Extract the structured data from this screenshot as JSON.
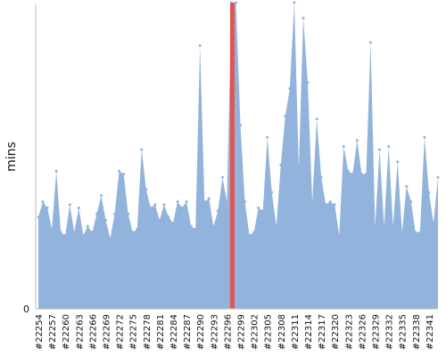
{
  "chart_data": {
    "type": "area",
    "ylabel": "mins",
    "xlabel": "",
    "title": "",
    "y_ticks": [
      "0"
    ],
    "ylim": [
      0,
      100
    ],
    "fill_color": "#92b4dc",
    "highlight_color": "#e15555",
    "highlight_x": "#22297",
    "x_tick_labels": [
      "#22254",
      "#22257",
      "#22260",
      "#22263",
      "#22266",
      "#22269",
      "#22272",
      "#22275",
      "#22278",
      "#22281",
      "#22284",
      "#22287",
      "#22290",
      "#22293",
      "#22296",
      "#22299",
      "#22302",
      "#22305",
      "#22308",
      "#22311",
      "#22314",
      "#22317",
      "#22320",
      "#22323",
      "#22326",
      "#22329",
      "#22332",
      "#22335",
      "#22338",
      "#22341"
    ],
    "x": [
      "#22254",
      "#22255",
      "#22256",
      "#22257",
      "#22258",
      "#22259",
      "#22260",
      "#22261",
      "#22262",
      "#22263",
      "#22264",
      "#22265",
      "#22266",
      "#22267",
      "#22268",
      "#22269",
      "#22270",
      "#22271",
      "#22272",
      "#22273",
      "#22274",
      "#22275",
      "#22276",
      "#22277",
      "#22278",
      "#22279",
      "#22280",
      "#22281",
      "#22282",
      "#22283",
      "#22284",
      "#22285",
      "#22286",
      "#22287",
      "#22288",
      "#22289",
      "#22290",
      "#22291",
      "#22292",
      "#22293",
      "#22294",
      "#22295",
      "#22296",
      "#22297",
      "#22298",
      "#22299",
      "#22300",
      "#22301",
      "#22302",
      "#22303",
      "#22304",
      "#22305",
      "#22306",
      "#22307",
      "#22308",
      "#22309",
      "#22310",
      "#22311",
      "#22312",
      "#22313",
      "#22314",
      "#22315",
      "#22316",
      "#22317",
      "#22318",
      "#22319",
      "#22320",
      "#22321",
      "#22322",
      "#22323",
      "#22324",
      "#22325",
      "#22326",
      "#22327",
      "#22328",
      "#22329",
      "#22330",
      "#22331",
      "#22332",
      "#22333",
      "#22334",
      "#22335",
      "#22336",
      "#22337",
      "#22338",
      "#22339",
      "#22340",
      "#22341",
      "#22342",
      "#22343"
    ],
    "values": [
      30,
      35,
      33,
      26,
      45,
      25,
      24,
      34,
      25,
      33,
      24,
      27,
      25,
      31,
      37,
      29,
      23,
      31,
      45,
      44,
      31,
      25,
      26,
      52,
      39,
      33,
      34,
      29,
      34,
      30,
      28,
      35,
      33,
      35,
      27,
      26,
      86,
      35,
      36,
      27,
      32,
      43,
      35,
      100,
      100,
      60,
      35,
      24,
      25,
      33,
      32,
      56,
      38,
      27,
      47,
      63,
      72,
      100,
      46,
      95,
      74,
      35,
      62,
      43,
      34,
      35,
      34,
      24,
      53,
      45,
      44,
      55,
      44,
      44,
      87,
      27,
      52,
      27,
      53,
      27,
      48,
      25,
      40,
      35,
      25,
      25,
      56,
      38,
      28,
      43
    ]
  }
}
